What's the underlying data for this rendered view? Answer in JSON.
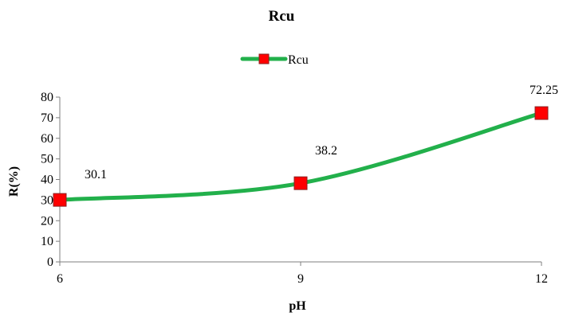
{
  "chart_data": {
    "type": "line",
    "title": "Rcu",
    "xlabel": "pH",
    "ylabel": "R(%)",
    "x": [
      6,
      9,
      12
    ],
    "x_ticks": [
      "6",
      "9",
      "12"
    ],
    "y_ticks": [
      "0",
      "10",
      "20",
      "30",
      "40",
      "50",
      "60",
      "70",
      "80"
    ],
    "ylim": [
      0,
      80
    ],
    "xlim": [
      6,
      12
    ],
    "grid": false,
    "legend_position": "top-center",
    "series": [
      {
        "name": "Rcu",
        "values": [
          30.1,
          38.2,
          72.25
        ],
        "data_labels": [
          "30.1",
          "38.2",
          "72.25"
        ],
        "line_color": "#22b04b",
        "marker_color": "#ff0000",
        "marker_shape": "square"
      }
    ]
  }
}
